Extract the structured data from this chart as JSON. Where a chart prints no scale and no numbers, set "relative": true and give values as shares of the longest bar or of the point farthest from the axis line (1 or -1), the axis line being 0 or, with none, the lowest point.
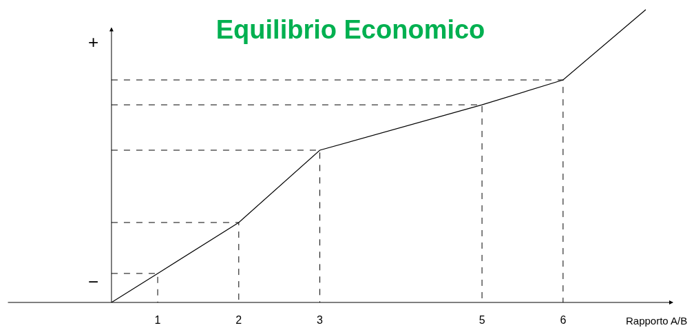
{
  "chart_data": {
    "type": "line",
    "title": "Equilibrio Economico",
    "xlabel": "Rapporto A/B",
    "relative": true,
    "x": [
      0.43,
      1,
      2,
      3,
      5,
      6,
      7.02
    ],
    "series": [
      {
        "color": "#000000",
        "values": [
          0,
          0.099,
          0.273,
          0.52,
          0.675,
          0.76,
          1
        ]
      },
      {
        "color": "#000000",
        "line_style": "dashed",
        "x": [
          0.43,
          1,
          1
        ],
        "values": [
          0.099,
          0.099,
          0
        ]
      },
      {
        "color": "#000000",
        "line_style": "dashed",
        "x": [
          0.43,
          2,
          2
        ],
        "values": [
          0.273,
          0.273,
          0
        ]
      },
      {
        "color": "#000000",
        "line_style": "dashed",
        "x": [
          0.43,
          3,
          3
        ],
        "values": [
          0.52,
          0.52,
          0
        ]
      },
      {
        "color": "#000000",
        "line_style": "dashed",
        "x": [
          0.43,
          5,
          5
        ],
        "values": [
          0.675,
          0.675,
          0
        ]
      },
      {
        "color": "#000000",
        "line_style": "dashed",
        "x": [
          0.43,
          6,
          6
        ],
        "values": [
          0.76,
          0.76,
          0
        ]
      }
    ],
    "ref_lines": [
      {
        "axis": "x",
        "value": 0.43,
        "color": "#000000"
      }
    ],
    "xlim": [
      -0.86,
      7.36
    ],
    "xticks": [
      1,
      2,
      3,
      5,
      6
    ],
    "annotations": [
      "+",
      "−"
    ],
    "grid": false,
    "marker": "none",
    "line_style": "solid"
  }
}
